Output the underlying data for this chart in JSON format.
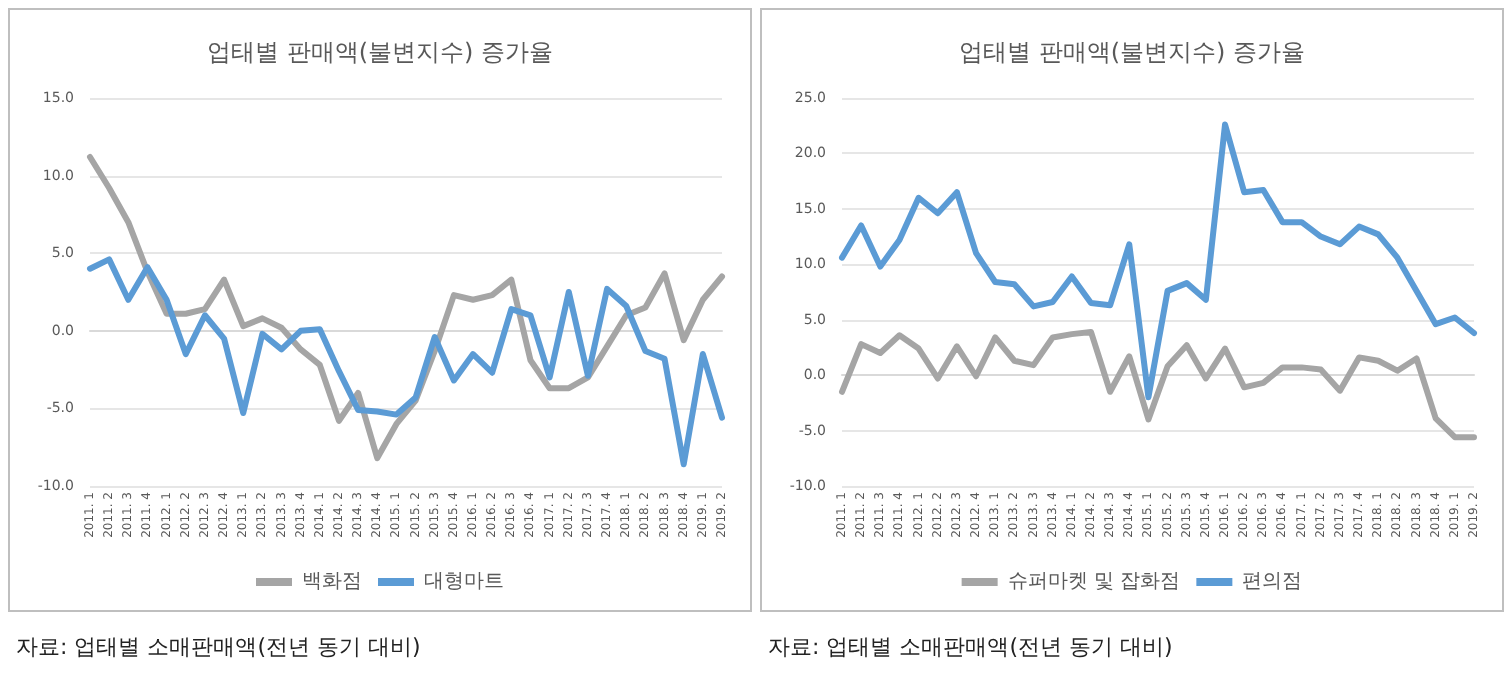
{
  "chart_data": [
    {
      "type": "line",
      "title": "업태별 판매액(불변지수) 증가율",
      "categories": [
        "2011. 1",
        "2011. 2",
        "2011. 3",
        "2011. 4",
        "2012. 1",
        "2012. 2",
        "2012. 3",
        "2012. 4",
        "2013. 1",
        "2013. 2",
        "2013. 3",
        "2013. 4",
        "2014. 1",
        "2014. 2",
        "2014. 3",
        "2014. 4",
        "2015. 1",
        "2015. 2",
        "2015. 3",
        "2015. 4",
        "2016. 1",
        "2016. 2",
        "2016. 3",
        "2016. 4",
        "2017. 1",
        "2017. 2",
        "2017. 3",
        "2017. 4",
        "2018. 1",
        "2018. 2",
        "2018. 3",
        "2018. 4",
        "2019. 1",
        "2019. 2"
      ],
      "series": [
        {
          "name": "백화점",
          "color": "#a5a5a5",
          "values": [
            11.2,
            9.2,
            7.0,
            3.8,
            1.1,
            1.1,
            1.4,
            3.3,
            0.3,
            0.8,
            0.2,
            -1.2,
            -2.2,
            -5.8,
            -4.0,
            -8.2,
            -6.0,
            -4.5,
            -1.3,
            2.3,
            2.0,
            2.3,
            3.3,
            -1.9,
            -3.7,
            -3.7,
            -3.0,
            -1.0,
            1.0,
            1.5,
            3.7,
            -0.6,
            2.0,
            3.5
          ]
        },
        {
          "name": "대형마트",
          "color": "#5b9bd5",
          "values": [
            4.0,
            4.6,
            2.0,
            4.1,
            2.0,
            -1.5,
            1.0,
            -0.5,
            -5.3,
            -0.2,
            -1.2,
            0.0,
            0.1,
            -2.6,
            -5.1,
            -5.2,
            -5.4,
            -4.3,
            -0.4,
            -3.2,
            -1.5,
            -2.7,
            1.4,
            1.0,
            -3.0,
            2.5,
            -2.9,
            2.7,
            1.6,
            -1.3,
            -1.8,
            -8.6,
            -1.5,
            -5.6
          ]
        }
      ],
      "ylim": [
        -10,
        15
      ],
      "yticks": [
        {
          "value": -10,
          "label": "-10.0"
        },
        {
          "value": -5,
          "label": "-5.0"
        },
        {
          "value": 0,
          "label": "0.0"
        },
        {
          "value": 5,
          "label": "5.0"
        },
        {
          "value": 10,
          "label": "10.0"
        },
        {
          "value": 15,
          "label": "15.0"
        }
      ],
      "grid": "y",
      "legend": "bottom",
      "marker": "none",
      "line_style": "solid",
      "annotations": [
        "자료: 업태별 소매판매액(전년 동기 대비)"
      ]
    },
    {
      "type": "line",
      "title": "업태별 판매액(불변지수) 증가율",
      "categories": [
        "2011. 1",
        "2011. 2",
        "2011. 3",
        "2011. 4",
        "2012. 1",
        "2012. 2",
        "2012. 3",
        "2012. 4",
        "2013. 1",
        "2013. 2",
        "2013. 3",
        "2013. 4",
        "2014. 1",
        "2014. 2",
        "2014. 3",
        "2014. 4",
        "2015. 1",
        "2015. 2",
        "2015. 3",
        "2015. 4",
        "2016. 1",
        "2016. 2",
        "2016. 3",
        "2016. 4",
        "2017. 1",
        "2017. 2",
        "2017. 3",
        "2017. 4",
        "2018. 1",
        "2018. 2",
        "2018. 3",
        "2018. 4",
        "2019. 1",
        "2019. 2"
      ],
      "series": [
        {
          "name": "슈퍼마켓 및 잡화점",
          "color": "#a5a5a5",
          "values": [
            -1.5,
            2.8,
            2.0,
            3.6,
            2.4,
            -0.3,
            2.6,
            -0.1,
            3.4,
            1.3,
            0.9,
            3.4,
            3.7,
            3.9,
            -1.5,
            1.7,
            -4.0,
            0.8,
            2.7,
            -0.3,
            2.4,
            -1.1,
            -0.7,
            0.7,
            0.7,
            0.5,
            -1.4,
            1.6,
            1.3,
            0.4,
            1.5,
            -3.9,
            -5.6,
            -5.6
          ]
        },
        {
          "name": "편의점",
          "color": "#5b9bd5",
          "values": [
            10.6,
            13.5,
            9.8,
            12.2,
            16.0,
            14.6,
            16.5,
            11.0,
            8.4,
            8.2,
            6.2,
            6.6,
            8.9,
            6.5,
            6.3,
            11.8,
            -2.0,
            7.6,
            8.3,
            6.8,
            22.6,
            16.5,
            16.7,
            13.8,
            13.8,
            12.5,
            11.8,
            13.4,
            12.7,
            10.6,
            7.6,
            4.6,
            5.2,
            3.8
          ]
        }
      ],
      "ylim": [
        -10,
        25
      ],
      "yticks": [
        {
          "value": -10,
          "label": "-10.0"
        },
        {
          "value": -5,
          "label": "-5.0"
        },
        {
          "value": 0,
          "label": "0.0"
        },
        {
          "value": 5,
          "label": "5.0"
        },
        {
          "value": 10,
          "label": "10.0"
        },
        {
          "value": 15,
          "label": "15.0"
        },
        {
          "value": 20,
          "label": "20.0"
        },
        {
          "value": 25,
          "label": "25.0"
        }
      ],
      "grid": "y",
      "legend": "bottom",
      "marker": "none",
      "line_style": "solid",
      "annotations": [
        "자료: 업태별 소매판매액(전년 동기 대비)"
      ]
    }
  ]
}
